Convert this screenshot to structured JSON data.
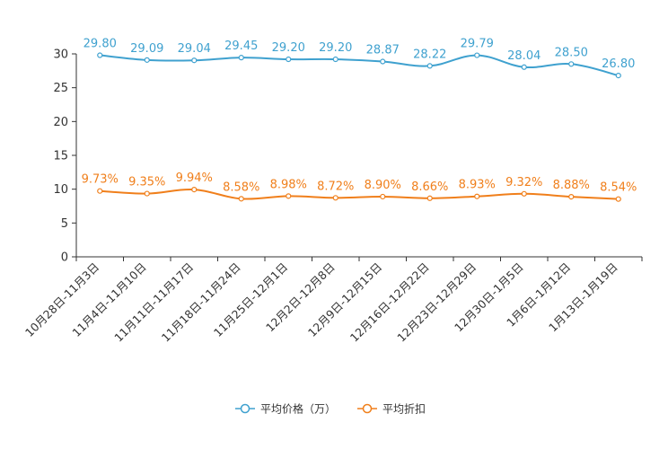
{
  "chart_data": {
    "type": "line",
    "title": "",
    "xlabel": "",
    "ylabel": "",
    "ylim": [
      0,
      30
    ],
    "yticks": [
      0,
      5,
      10,
      15,
      20,
      25,
      30
    ],
    "grid": false,
    "legend_position": "bottom-center",
    "categories": [
      "10月28日-11月3日",
      "11月4日-11月10日",
      "11月11日-11月17日",
      "11月18日-11月24日",
      "11月25日-12月1日",
      "12月2日-12月8日",
      "12月9日-12月15日",
      "12月16日-12月22日",
      "12月23日-12月29日",
      "12月30日-1月5日",
      "1月6日-1月12日",
      "1月13日-1月19日"
    ],
    "series": [
      {
        "name": "平均价格（万）",
        "color": "#3fa1cf",
        "values": [
          29.8,
          29.09,
          29.04,
          29.45,
          29.2,
          29.2,
          28.87,
          28.22,
          29.79,
          28.04,
          28.5,
          26.8
        ],
        "labels": [
          "29.80",
          "29.09",
          "29.04",
          "29.45",
          "29.20",
          "29.20",
          "28.87",
          "28.22",
          "29.79",
          "28.04",
          "28.50",
          "26.80"
        ]
      },
      {
        "name": "平均折扣",
        "color": "#f07f1b",
        "values": [
          9.73,
          9.35,
          9.94,
          8.58,
          8.98,
          8.72,
          8.9,
          8.66,
          8.93,
          9.32,
          8.88,
          8.54
        ],
        "labels": [
          "9.73%",
          "9.35%",
          "9.94%",
          "8.58%",
          "8.98%",
          "8.72%",
          "8.90%",
          "8.66%",
          "8.93%",
          "9.32%",
          "8.88%",
          "8.54%"
        ]
      }
    ]
  }
}
